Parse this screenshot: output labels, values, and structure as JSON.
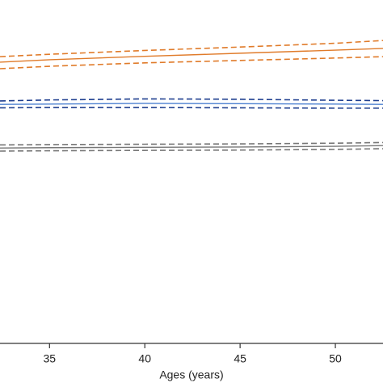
{
  "chart_data": {
    "type": "line",
    "x_label": "Ages (years)",
    "x": [
      32.4,
      35,
      40,
      45,
      50,
      52.5
    ],
    "xlim": [
      32.4,
      52.5
    ],
    "xticks": [
      35,
      40,
      45,
      50
    ],
    "ylim": [
      0,
      10
    ],
    "series": [
      {
        "color": "#e07b2a",
        "dash": false,
        "values": [
          8.19,
          8.26,
          8.36,
          8.45,
          8.54,
          8.59
        ]
      },
      {
        "color": "#e07b2a",
        "dash": true,
        "values": [
          8.35,
          8.42,
          8.53,
          8.63,
          8.74,
          8.82
        ]
      },
      {
        "color": "#e07b2a",
        "dash": true,
        "values": [
          8.0,
          8.07,
          8.17,
          8.24,
          8.31,
          8.35
        ]
      },
      {
        "color": "#4a7fd0",
        "dash": false,
        "values": [
          6.96,
          6.97,
          6.99,
          6.98,
          6.97,
          6.96
        ]
      },
      {
        "color": "#1f3f8f",
        "dash": true,
        "values": [
          7.06,
          7.09,
          7.12,
          7.11,
          7.08,
          7.07
        ]
      },
      {
        "color": "#1f3f8f",
        "dash": true,
        "values": [
          6.86,
          6.87,
          6.87,
          6.86,
          6.85,
          6.85
        ]
      },
      {
        "color": "#777777",
        "dash": false,
        "values": [
          5.69,
          5.7,
          5.71,
          5.72,
          5.74,
          5.76
        ]
      },
      {
        "color": "#777777",
        "dash": true,
        "values": [
          5.78,
          5.79,
          5.8,
          5.81,
          5.83,
          5.85
        ]
      },
      {
        "color": "#777777",
        "dash": true,
        "values": [
          5.6,
          5.61,
          5.62,
          5.63,
          5.65,
          5.67
        ]
      }
    ]
  }
}
